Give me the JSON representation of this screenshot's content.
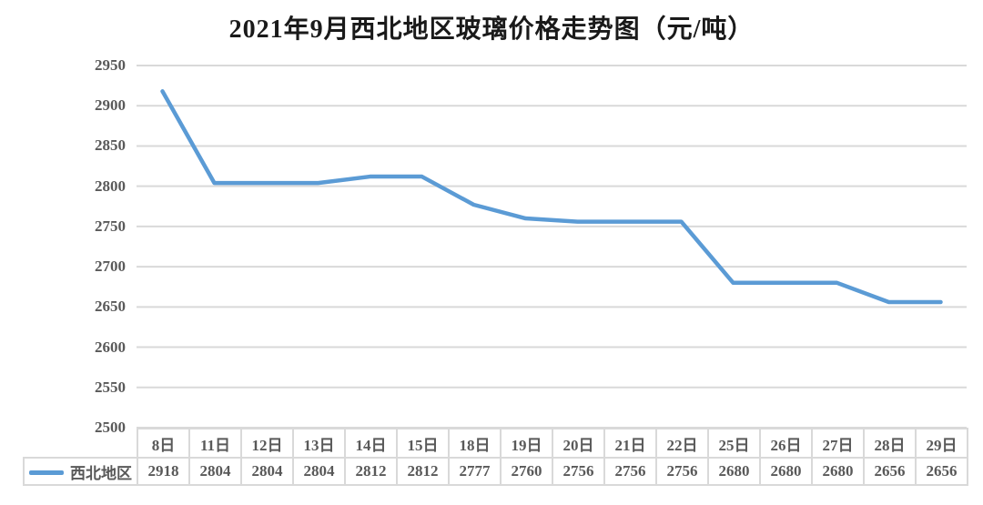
{
  "title": "2021年9月西北地区玻璃价格走势图（元/吨）",
  "colors": {
    "line": "#5B9BD5",
    "grid": "#D9D9D9",
    "table_border": "#D9D9D9",
    "axis_text": "#595959",
    "title_text": "#1A1A1A",
    "background": "#FFFFFF"
  },
  "legend": {
    "label": "西北地区",
    "marker": "line-swatch"
  },
  "chart_data": {
    "type": "line",
    "title": "2021年9月西北地区玻璃价格走势图（元/吨）",
    "categories": [
      "8日",
      "11日",
      "12日",
      "13日",
      "14日",
      "15日",
      "18日",
      "19日",
      "20日",
      "21日",
      "22日",
      "25日",
      "26日",
      "27日",
      "28日",
      "29日"
    ],
    "series": [
      {
        "name": "西北地区",
        "values": [
          2918,
          2804,
          2804,
          2804,
          2812,
          2812,
          2777,
          2760,
          2756,
          2756,
          2756,
          2680,
          2680,
          2680,
          2656,
          2656
        ]
      }
    ],
    "xlabel": "",
    "ylabel": "",
    "ylim": [
      2500,
      2950
    ],
    "yticks": [
      2500,
      2550,
      2600,
      2650,
      2700,
      2750,
      2800,
      2850,
      2900,
      2950
    ],
    "grid": true,
    "legend_position": "bottom-left-table",
    "data_table_shown": true
  }
}
